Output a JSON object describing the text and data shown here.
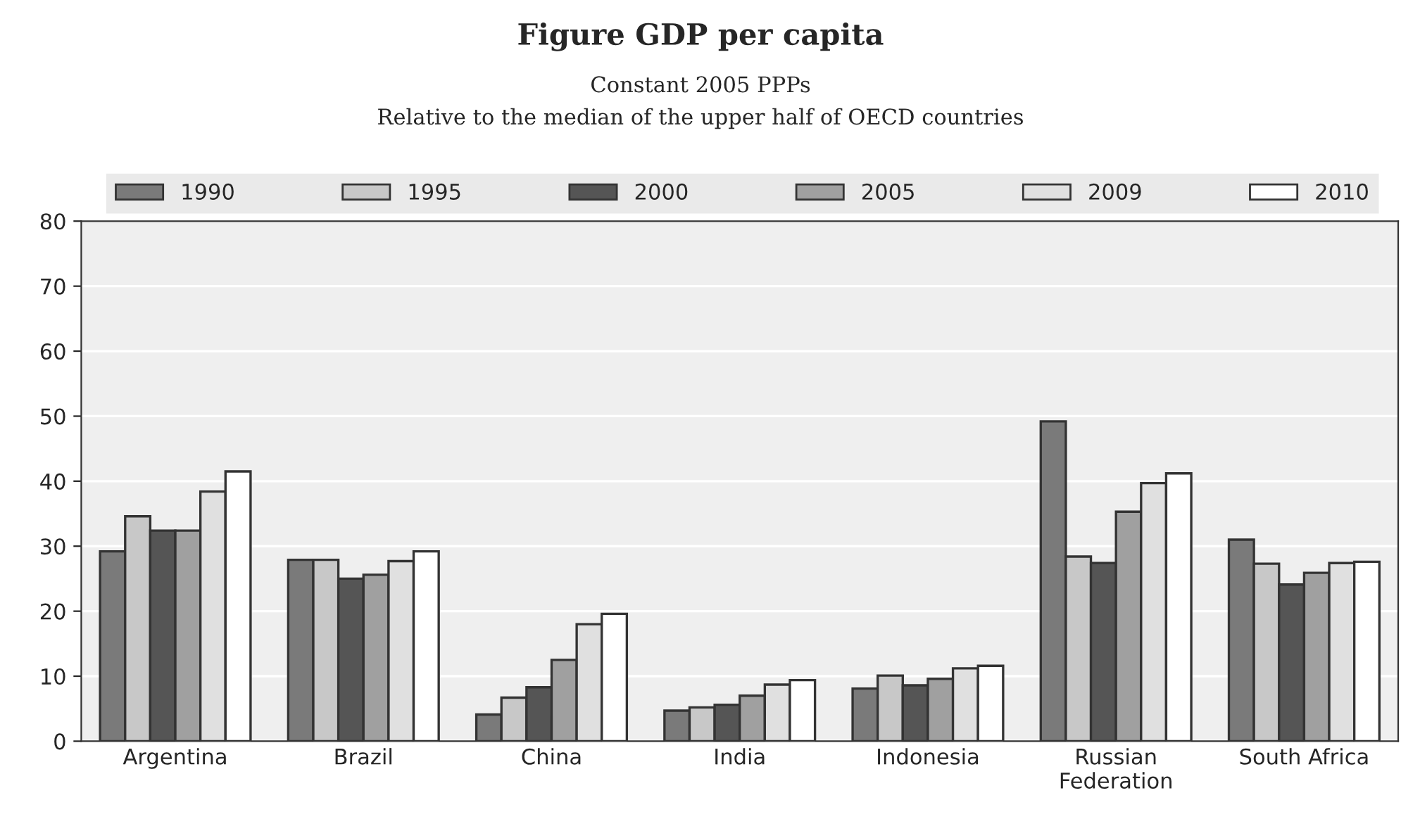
{
  "chart_data": {
    "type": "bar",
    "title": "Figure GDP per capita",
    "subtitle": "Constant 2005 PPPs\nRelative to the median of the upper half of OECD countries",
    "categories": [
      "Argentina",
      "Brazil",
      "China",
      "India",
      "Indonesia",
      "Russian\nFederation",
      "South Africa"
    ],
    "series": [
      {
        "name": "1990",
        "color": "#7a7a7a",
        "values": [
          29.2,
          27.9,
          4.1,
          4.7,
          8.1,
          49.2,
          31.0
        ]
      },
      {
        "name": "1995",
        "color": "#c8c8c8",
        "values": [
          34.6,
          27.9,
          6.7,
          5.2,
          10.1,
          28.4,
          27.3
        ]
      },
      {
        "name": "2000",
        "color": "#555555",
        "values": [
          32.4,
          25.0,
          8.3,
          5.6,
          8.6,
          27.4,
          24.1
        ]
      },
      {
        "name": "2005",
        "color": "#a0a0a0",
        "values": [
          32.4,
          25.6,
          12.5,
          7.0,
          9.6,
          35.3,
          25.9
        ]
      },
      {
        "name": "2009",
        "color": "#e0e0e0",
        "values": [
          38.4,
          27.7,
          18.0,
          8.7,
          11.2,
          39.7,
          27.4
        ]
      },
      {
        "name": "2010",
        "color": "#ffffff",
        "values": [
          41.5,
          29.2,
          19.6,
          9.4,
          11.6,
          41.2,
          27.6
        ]
      }
    ],
    "ylim": [
      0,
      80
    ],
    "yticks": [
      0,
      10,
      20,
      30,
      40,
      50,
      60,
      70,
      80
    ],
    "grid": "y",
    "legend": "top"
  }
}
